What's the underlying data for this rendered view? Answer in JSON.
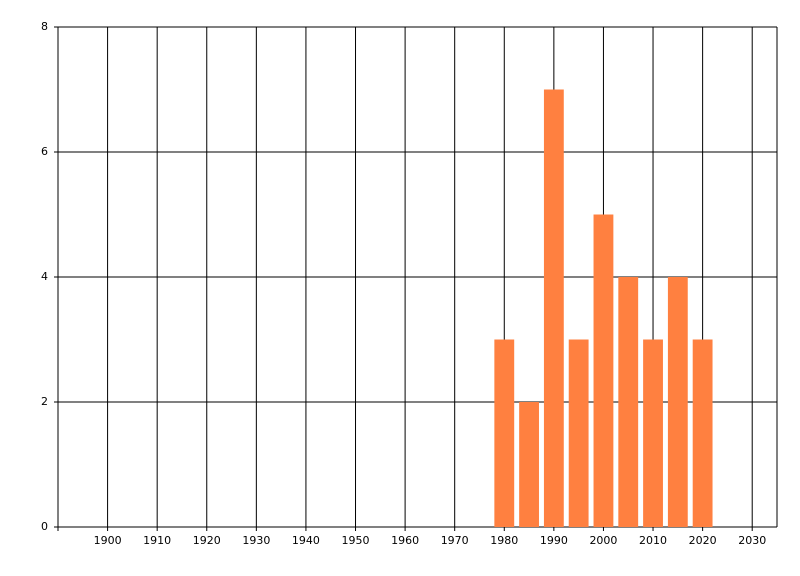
{
  "chart_data": {
    "type": "bar",
    "x": [
      1980,
      1985,
      1990,
      1995,
      2000,
      2005,
      2010,
      2015,
      2020
    ],
    "values": [
      3,
      2,
      7,
      3,
      5,
      4,
      3,
      4,
      3
    ],
    "color": "#ff8040",
    "xlim": [
      1890,
      2035
    ],
    "xticks": [
      1900,
      1910,
      1920,
      1930,
      1940,
      1950,
      1960,
      1970,
      1980,
      1990,
      2000,
      2010,
      2020,
      2030
    ],
    "ylim": [
      0,
      8
    ],
    "yticks": [
      0,
      2,
      4,
      6,
      8
    ],
    "grid": true
  }
}
